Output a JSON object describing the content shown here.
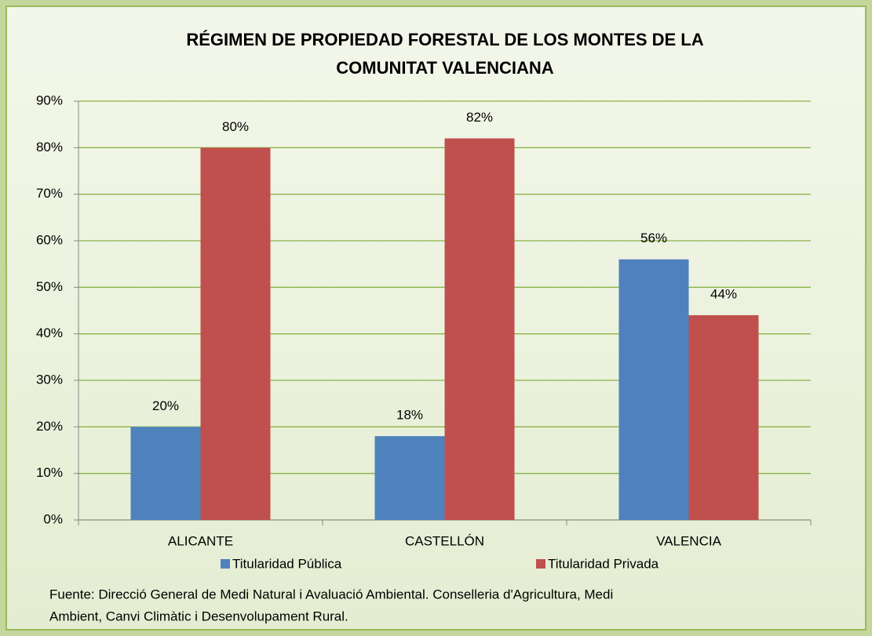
{
  "chart_data": {
    "type": "bar",
    "title": [
      "RÉGIMEN DE PROPIEDAD FORESTAL DE LOS MONTES  DE LA",
      "COMUNITAT VALENCIANA"
    ],
    "categories": [
      "ALICANTE",
      "CASTELLÓN",
      "VALENCIA"
    ],
    "series": [
      {
        "name": "Titularidad Pública",
        "color": "#4f81bd",
        "values": [
          20,
          18,
          56
        ],
        "value_labels": [
          "20%",
          "18%",
          "56%"
        ]
      },
      {
        "name": "Titularidad Privada",
        "color": "#c0504d",
        "values": [
          80,
          82,
          44
        ],
        "value_labels": [
          "80%",
          "82%",
          "44%"
        ]
      }
    ],
    "ylim": [
      0,
      90
    ],
    "yticks": [
      {
        "value": 0,
        "label": "0%"
      },
      {
        "value": 10,
        "label": "10%"
      },
      {
        "value": 20,
        "label": "20%"
      },
      {
        "value": 30,
        "label": "30%"
      },
      {
        "value": 40,
        "label": "40%"
      },
      {
        "value": 50,
        "label": "50%"
      },
      {
        "value": 60,
        "label": "60%"
      },
      {
        "value": 70,
        "label": "70%"
      },
      {
        "value": 80,
        "label": "80%"
      },
      {
        "value": 90,
        "label": "90%"
      }
    ],
    "grid": true,
    "legend": "bottom",
    "source": [
      "Fuente: Direcció General de Medi Natural i Avaluació Ambiental. Conselleria d'Agricultura, Medi",
      "Ambient, Canvi Climàtic i Desenvolupament Rural."
    ]
  }
}
